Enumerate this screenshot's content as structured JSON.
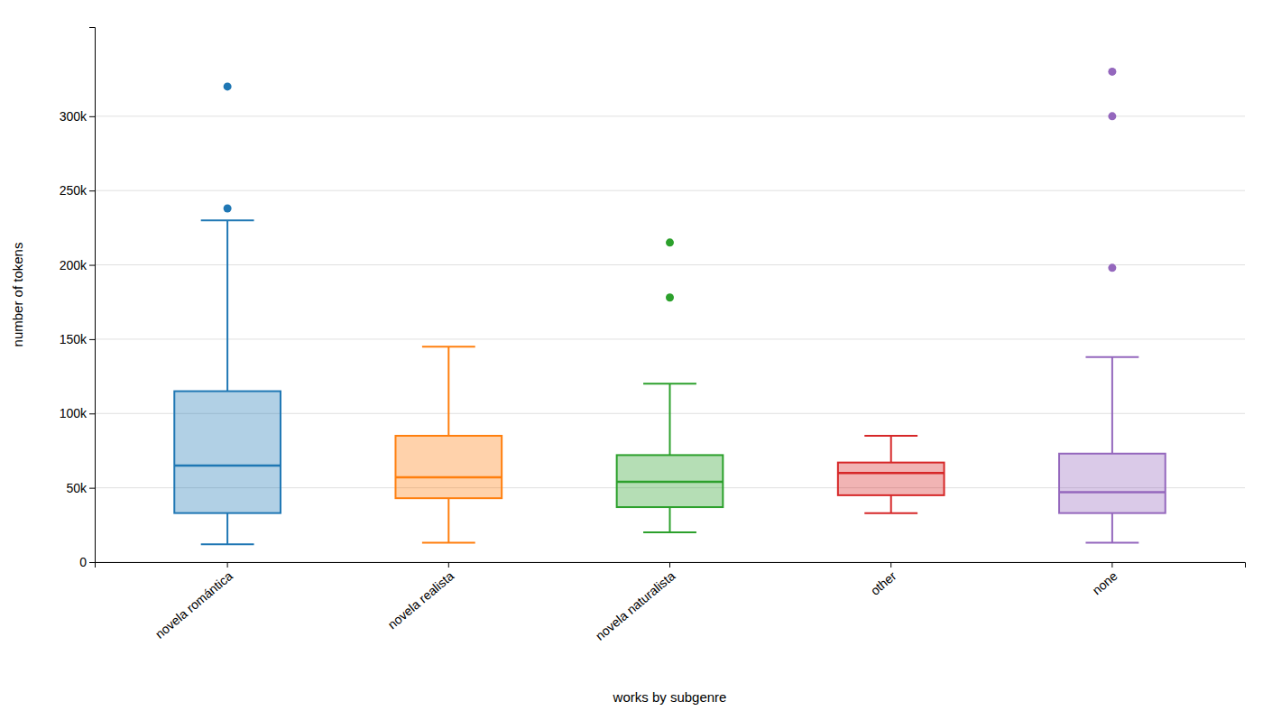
{
  "chart_data": {
    "type": "box",
    "categories": [
      "novela romántica",
      "novela realista",
      "novela naturalista",
      "other",
      "none"
    ],
    "values": [
      {
        "whislo": 12000,
        "q1": 33000,
        "med": 65000,
        "q3": 115000,
        "whishi": 230000,
        "fliers": [
          238000,
          320000
        ]
      },
      {
        "whislo": 13000,
        "q1": 43000,
        "med": 57000,
        "q3": 85000,
        "whishi": 145000,
        "fliers": []
      },
      {
        "whislo": 20000,
        "q1": 37000,
        "med": 54000,
        "q3": 72000,
        "whishi": 120000,
        "fliers": [
          178000,
          215000
        ]
      },
      {
        "whislo": 33000,
        "q1": 45000,
        "med": 60000,
        "q3": 67000,
        "whishi": 85000,
        "fliers": []
      },
      {
        "whislo": 13000,
        "q1": 33000,
        "med": 47000,
        "q3": 73000,
        "whishi": 138000,
        "fliers": [
          198000,
          300000,
          330000
        ]
      }
    ],
    "xlabel": "works by subgenre",
    "ylabel": "number of tokens",
    "ylim": [
      0,
      360000
    ],
    "yticks": [
      0,
      {
        "value": 50000,
        "label": "50k"
      },
      {
        "value": 100000,
        "label": "100k"
      },
      {
        "value": 150000,
        "label": "150k"
      },
      {
        "value": 200000,
        "label": "200k"
      },
      {
        "value": 250000,
        "label": "250k"
      },
      {
        "value": 300000,
        "label": "300k"
      }
    ],
    "grid": true
  }
}
